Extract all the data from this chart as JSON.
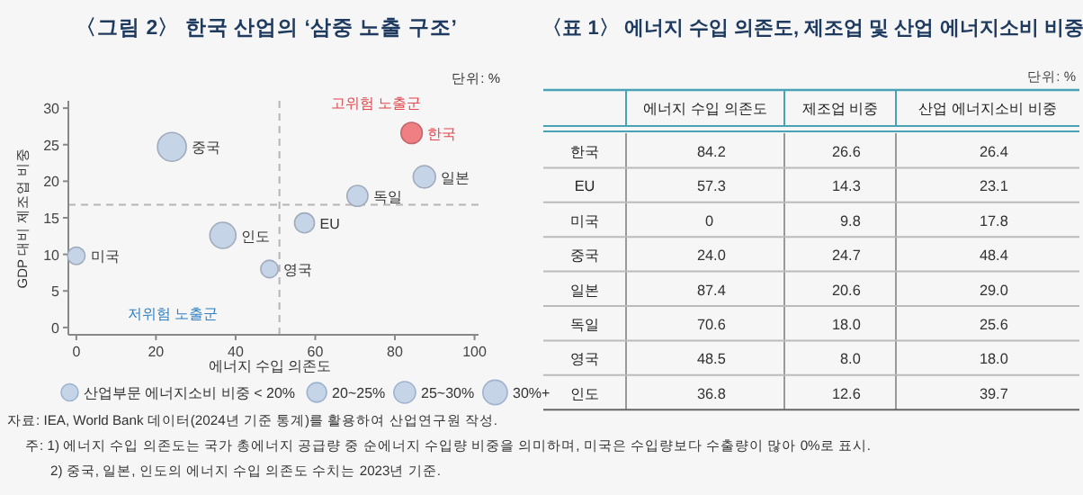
{
  "chart_data": [
    {
      "type": "bubble",
      "title": "〈그림 2〉 한국 산업의 ‘삼중 노출 구조’",
      "xlabel": "에너지 수입 의존도",
      "ylabel": "GDP 대비 제조업 비중",
      "x": [
        84.2,
        57.3,
        0,
        24.0,
        87.4,
        70.6,
        48.5,
        36.8
      ],
      "values": [
        26.6,
        14.3,
        9.8,
        24.7,
        20.6,
        18.0,
        8.0,
        12.6
      ],
      "sizes": [
        26.4,
        23.1,
        17.8,
        48.4,
        29.0,
        25.6,
        18.0,
        39.7
      ],
      "colors": [
        "#ef7f82",
        "#c6d4e8",
        "#c6d4e8",
        "#c6d4e8",
        "#c6d4e8",
        "#c6d4e8",
        "#c6d4e8",
        "#c6d4e8"
      ],
      "size_legend": [
        {
          "value": 17,
          "label": "산업부문 에너지소비 비중 < 20%"
        },
        {
          "value": 22.5,
          "label": "20~25%"
        },
        {
          "value": 27.5,
          "label": "25~30%"
        },
        {
          "value": 35,
          "label": "30%+"
        }
      ],
      "xlim": [
        -2,
        101
      ],
      "ylim": [
        -1,
        31
      ],
      "xticks": [
        0,
        20,
        40,
        60,
        80,
        100
      ],
      "yticks": [
        0,
        5,
        10,
        15,
        20,
        25,
        30
      ],
      "ref_lines": [
        {
          "axis": "x",
          "value": 51,
          "line_style": "dashed",
          "color": "#b5b5b5"
        },
        {
          "axis": "y",
          "value": 16.8,
          "line_style": "dashed",
          "color": "#b5b5b5"
        }
      ],
      "annotations": [
        "단위: %",
        "고위험 노출군",
        "저위험 노출군",
        {
          "text": "한국",
          "x": 84.2,
          "y": 26.6
        },
        {
          "text": "EU",
          "x": 57.3,
          "y": 14.3
        },
        {
          "text": "미국",
          "x": 0,
          "y": 9.8
        },
        {
          "text": "중국",
          "x": 24.0,
          "y": 24.7
        },
        {
          "text": "일본",
          "x": 87.4,
          "y": 20.6
        },
        {
          "text": "독일",
          "x": 70.6,
          "y": 18.0
        },
        {
          "text": "영국",
          "x": 48.5,
          "y": 8.0
        },
        {
          "text": "인도",
          "x": 36.8,
          "y": 12.6
        },
        "자료: IEA, World Bank 데이터(2024년 기준 통계)를 활용하여 산업연구원 작성.",
        "주: 1) 에너지 수입 의존도는 국가 총에너지 공급량 중 순에너지 수입량 비중을 의미하며, 미국은 수입량보다 수출량이 많아 0%로 표시.",
        "2) 중국, 일본, 인도의 에너지 수입 의존도 수치는 2023년 기준."
      ]
    },
    {
      "type": "other",
      "title": "〈표 1〉 에너지 수입 의존도, 제조업 및 산업 에너지소비 비중",
      "annotations": [
        "단위: %"
      ],
      "categories": [
        "한국",
        "EU",
        "미국",
        "중국",
        "일본",
        "독일",
        "영국",
        "인도"
      ],
      "series": [
        {
          "name": "에너지 수입 의존도",
          "values": [
            84.2,
            57.3,
            0,
            24.0,
            87.4,
            70.6,
            48.5,
            36.8
          ],
          "value_labels": [
            "84.2",
            "57.3",
            "0",
            "24.0",
            "87.4",
            "70.6",
            "48.5",
            "36.8"
          ]
        },
        {
          "name": "제조업 비중",
          "values": [
            26.6,
            14.3,
            9.8,
            24.7,
            20.6,
            18.0,
            8.0,
            12.6
          ],
          "value_labels": [
            "26.6",
            "14.3",
            "9.8",
            "24.7",
            "20.6",
            "18.0",
            "8.0",
            "12.6"
          ]
        },
        {
          "name": "산업 에너지소비 비중",
          "values": [
            26.4,
            23.1,
            17.8,
            48.4,
            29.0,
            25.6,
            18.0,
            39.7
          ],
          "value_labels": [
            "26.4",
            "23.1",
            "17.8",
            "48.4",
            "29.0",
            "25.6",
            "18.0",
            "39.7"
          ]
        }
      ]
    }
  ]
}
